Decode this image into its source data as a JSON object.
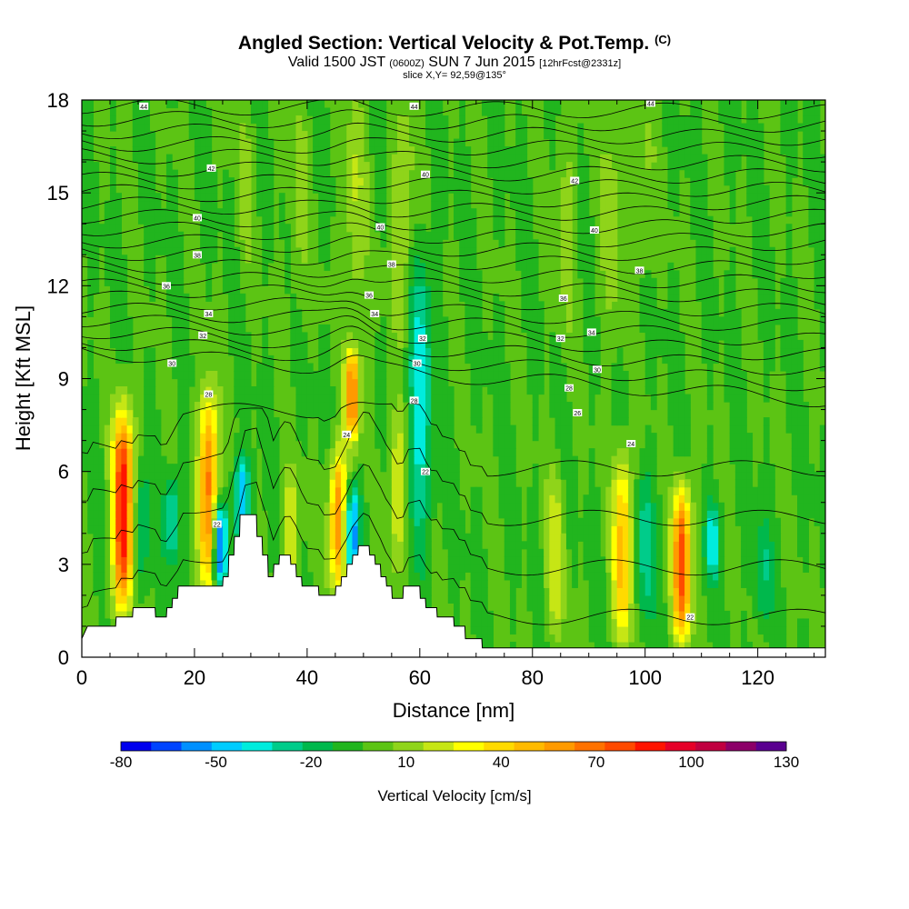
{
  "title": {
    "main": "Angled Section: Vertical Velocity & Pot.Temp.",
    "main_suffix": "(C)",
    "valid_prefix": "Valid 1500 JST",
    "valid_zulu": "(0600Z)",
    "valid_date": "SUN 7 Jun 2015",
    "forecast": "[12hrFcst@2331z]",
    "slice": "slice X,Y= 92,59@135°"
  },
  "chart_data": {
    "type": "heatmap",
    "xlabel": "Distance [nm]",
    "ylabel": "Height [Kft MSL]",
    "xlim": [
      0,
      132
    ],
    "ylim": [
      0,
      18
    ],
    "xticks": [
      0,
      20,
      40,
      60,
      80,
      100,
      120
    ],
    "yticks": [
      0,
      3,
      6,
      9,
      12,
      15,
      18
    ],
    "colorbar": {
      "label": "Vertical Velocity [cm/s]",
      "tick_labels": [
        "-80",
        "-50",
        "-20",
        "10",
        "40",
        "70",
        "100",
        "130"
      ],
      "levels": [
        -80,
        -70,
        -60,
        -50,
        -40,
        -30,
        -20,
        -10,
        0,
        10,
        20,
        30,
        40,
        50,
        60,
        70,
        80,
        90,
        100,
        110,
        120,
        130
      ],
      "colors": [
        "#0000ee",
        "#0044ff",
        "#0090ff",
        "#00ccff",
        "#00ecdd",
        "#00cc8a",
        "#00b84c",
        "#21b51e",
        "#5cc414",
        "#8fd41a",
        "#c6e615",
        "#ffff00",
        "#ffda00",
        "#ffba00",
        "#ff9a00",
        "#ff7200",
        "#ff4a00",
        "#ff1400",
        "#e60028",
        "#c00040",
        "#8c0068",
        "#5a0090"
      ]
    },
    "background_level": 0,
    "updrafts": [
      {
        "x": 7.3,
        "y_bottom": 1.5,
        "y_top": 8.0,
        "peak": 100
      },
      {
        "x": 22.5,
        "y_bottom": 2.3,
        "y_top": 8.5,
        "peak": 75
      },
      {
        "x": 45.5,
        "y_bottom": 2.0,
        "y_top": 6.7,
        "peak": 70
      },
      {
        "x": 48.0,
        "y_bottom": 7.0,
        "y_top": 10.0,
        "peak": 75
      },
      {
        "x": 37.0,
        "y_bottom": 2.5,
        "y_top": 6.0,
        "peak": 30
      },
      {
        "x": 56.0,
        "y_bottom": 2.5,
        "y_top": 8.0,
        "peak": 30
      },
      {
        "x": 96.0,
        "y_bottom": 0.5,
        "y_top": 6.5,
        "peak": 55
      },
      {
        "x": 106.5,
        "y_bottom": 0.5,
        "y_top": 5.5,
        "peak": 85
      },
      {
        "x": 84.0,
        "y_bottom": 0.5,
        "y_top": 6.0,
        "peak": 25
      },
      {
        "x": 48.5,
        "y_bottom": 11.0,
        "y_top": 18.0,
        "peak": 20
      },
      {
        "x": 57.0,
        "y_bottom": 10.0,
        "y_top": 18.0,
        "peak": 20
      },
      {
        "x": 94.0,
        "y_bottom": 10.0,
        "y_top": 18.0,
        "peak": 15
      },
      {
        "x": 38.5,
        "y_bottom": 11.0,
        "y_top": 18.0,
        "peak": 12
      },
      {
        "x": 29.0,
        "y_bottom": 12.0,
        "y_top": 18.0,
        "peak": 10
      },
      {
        "x": 86.0,
        "y_bottom": 10.0,
        "y_top": 18.0,
        "peak": 12
      },
      {
        "x": 100.0,
        "y_bottom": 12.0,
        "y_top": 18.0,
        "peak": 10
      }
    ],
    "downdrafts": [
      {
        "x": 24.5,
        "y_bottom": 2.3,
        "y_top": 5.0,
        "peak": -70
      },
      {
        "x": 28.5,
        "y_bottom": 3.5,
        "y_top": 6.5,
        "peak": -50
      },
      {
        "x": 48.0,
        "y_bottom": 2.5,
        "y_top": 5.5,
        "peak": -60
      },
      {
        "x": 60.0,
        "y_bottom": 3.5,
        "y_top": 13.0,
        "peak": -35
      },
      {
        "x": 16.0,
        "y_bottom": 3.0,
        "y_top": 6.0,
        "peak": -30
      },
      {
        "x": 10.5,
        "y_bottom": 2.0,
        "y_top": 6.0,
        "peak": -25
      },
      {
        "x": 100.0,
        "y_bottom": 1.0,
        "y_top": 6.0,
        "peak": -25
      },
      {
        "x": 112.0,
        "y_bottom": 2.5,
        "y_top": 5.0,
        "peak": -35
      },
      {
        "x": 121.0,
        "y_bottom": 1.0,
        "y_top": 4.5,
        "peak": -20
      }
    ],
    "terrain": [
      {
        "x": 0,
        "h": 0.6
      },
      {
        "x": 1,
        "h": 1.0
      },
      {
        "x": 6,
        "h": 1.0
      },
      {
        "x": 6.1,
        "h": 1.3
      },
      {
        "x": 9,
        "h": 1.3
      },
      {
        "x": 9.1,
        "h": 1.6
      },
      {
        "x": 13,
        "h": 1.6
      },
      {
        "x": 13.1,
        "h": 1.3
      },
      {
        "x": 15,
        "h": 1.3
      },
      {
        "x": 15.1,
        "h": 1.6
      },
      {
        "x": 16,
        "h": 1.6
      },
      {
        "x": 16.1,
        "h": 1.9
      },
      {
        "x": 17,
        "h": 1.9
      },
      {
        "x": 17.1,
        "h": 2.3
      },
      {
        "x": 25,
        "h": 2.3
      },
      {
        "x": 25.1,
        "h": 2.6
      },
      {
        "x": 26,
        "h": 2.6
      },
      {
        "x": 26.1,
        "h": 3.3
      },
      {
        "x": 27,
        "h": 3.3
      },
      {
        "x": 27.1,
        "h": 3.9
      },
      {
        "x": 28,
        "h": 3.9
      },
      {
        "x": 28.1,
        "h": 4.6
      },
      {
        "x": 31,
        "h": 4.6
      },
      {
        "x": 31.1,
        "h": 3.9
      },
      {
        "x": 32,
        "h": 3.9
      },
      {
        "x": 32.1,
        "h": 3.3
      },
      {
        "x": 33,
        "h": 3.3
      },
      {
        "x": 33.1,
        "h": 2.6
      },
      {
        "x": 34,
        "h": 2.6
      },
      {
        "x": 34.1,
        "h": 3.0
      },
      {
        "x": 35,
        "h": 3.0
      },
      {
        "x": 35.1,
        "h": 3.3
      },
      {
        "x": 37,
        "h": 3.3
      },
      {
        "x": 37.1,
        "h": 3.0
      },
      {
        "x": 38,
        "h": 3.0
      },
      {
        "x": 38.1,
        "h": 2.6
      },
      {
        "x": 39,
        "h": 2.6
      },
      {
        "x": 39.1,
        "h": 2.3
      },
      {
        "x": 42,
        "h": 2.3
      },
      {
        "x": 42.1,
        "h": 2.0
      },
      {
        "x": 45,
        "h": 2.0
      },
      {
        "x": 45.1,
        "h": 2.3
      },
      {
        "x": 46,
        "h": 2.3
      },
      {
        "x": 46.1,
        "h": 2.6
      },
      {
        "x": 47,
        "h": 2.6
      },
      {
        "x": 47.1,
        "h": 3.0
      },
      {
        "x": 48,
        "h": 3.0
      },
      {
        "x": 48.1,
        "h": 3.3
      },
      {
        "x": 49,
        "h": 3.3
      },
      {
        "x": 49.1,
        "h": 3.6
      },
      {
        "x": 51,
        "h": 3.6
      },
      {
        "x": 51.1,
        "h": 3.3
      },
      {
        "x": 52,
        "h": 3.3
      },
      {
        "x": 52.1,
        "h": 3.0
      },
      {
        "x": 53,
        "h": 3.0
      },
      {
        "x": 53.1,
        "h": 2.6
      },
      {
        "x": 54,
        "h": 2.6
      },
      {
        "x": 54.1,
        "h": 2.3
      },
      {
        "x": 55,
        "h": 2.3
      },
      {
        "x": 55.1,
        "h": 1.9
      },
      {
        "x": 57,
        "h": 1.9
      },
      {
        "x": 57.1,
        "h": 2.3
      },
      {
        "x": 60,
        "h": 2.3
      },
      {
        "x": 60.1,
        "h": 1.9
      },
      {
        "x": 61,
        "h": 1.9
      },
      {
        "x": 61.1,
        "h": 1.6
      },
      {
        "x": 63,
        "h": 1.6
      },
      {
        "x": 63.1,
        "h": 1.3
      },
      {
        "x": 66,
        "h": 1.3
      },
      {
        "x": 66.1,
        "h": 1.0
      },
      {
        "x": 68,
        "h": 1.0
      },
      {
        "x": 68.1,
        "h": 0.6
      },
      {
        "x": 71,
        "h": 0.6
      },
      {
        "x": 71.1,
        "h": 0.3
      },
      {
        "x": 132,
        "h": 0.3
      }
    ],
    "theta_contours": {
      "ground_level": 1.0,
      "low_base": 7.5,
      "mid_base": 9.1,
      "upper_spacing": 0.41,
      "count": 26,
      "labels": [
        {
          "text": "44",
          "x": 11,
          "y": 17.8
        },
        {
          "text": "44",
          "x": 59,
          "y": 17.8
        },
        {
          "text": "44",
          "x": 101,
          "y": 17.9
        },
        {
          "text": "42",
          "x": 23,
          "y": 15.8
        },
        {
          "text": "40",
          "x": 61,
          "y": 15.6
        },
        {
          "text": "42",
          "x": 87.5,
          "y": 15.4
        },
        {
          "text": "40",
          "x": 20.5,
          "y": 14.2
        },
        {
          "text": "40",
          "x": 53,
          "y": 13.9
        },
        {
          "text": "40",
          "x": 91,
          "y": 13.8
        },
        {
          "text": "38",
          "x": 20.5,
          "y": 13.0
        },
        {
          "text": "38",
          "x": 55,
          "y": 12.7
        },
        {
          "text": "38",
          "x": 99,
          "y": 12.5
        },
        {
          "text": "36",
          "x": 15,
          "y": 12.0
        },
        {
          "text": "36",
          "x": 51,
          "y": 11.7
        },
        {
          "text": "36",
          "x": 85.5,
          "y": 11.6
        },
        {
          "text": "34",
          "x": 22.5,
          "y": 11.1
        },
        {
          "text": "34",
          "x": 52,
          "y": 11.1
        },
        {
          "text": "34",
          "x": 90.5,
          "y": 10.5
        },
        {
          "text": "32",
          "x": 21.5,
          "y": 10.4
        },
        {
          "text": "32",
          "x": 60.5,
          "y": 10.3
        },
        {
          "text": "32",
          "x": 85,
          "y": 10.3
        },
        {
          "text": "30",
          "x": 16,
          "y": 9.5
        },
        {
          "text": "30",
          "x": 59.5,
          "y": 9.5
        },
        {
          "text": "30",
          "x": 91.5,
          "y": 9.3
        },
        {
          "text": "28",
          "x": 22.5,
          "y": 8.5
        },
        {
          "text": "28",
          "x": 59,
          "y": 8.3
        },
        {
          "text": "28",
          "x": 86.5,
          "y": 8.7
        },
        {
          "text": "26",
          "x": 88,
          "y": 7.9
        },
        {
          "text": "24",
          "x": 47,
          "y": 7.2
        },
        {
          "text": "24",
          "x": 97.5,
          "y": 6.9
        },
        {
          "text": "22",
          "x": 61,
          "y": 6.0
        },
        {
          "text": "22",
          "x": 24,
          "y": 4.3
        },
        {
          "text": "22",
          "x": 108,
          "y": 1.3
        }
      ]
    }
  }
}
